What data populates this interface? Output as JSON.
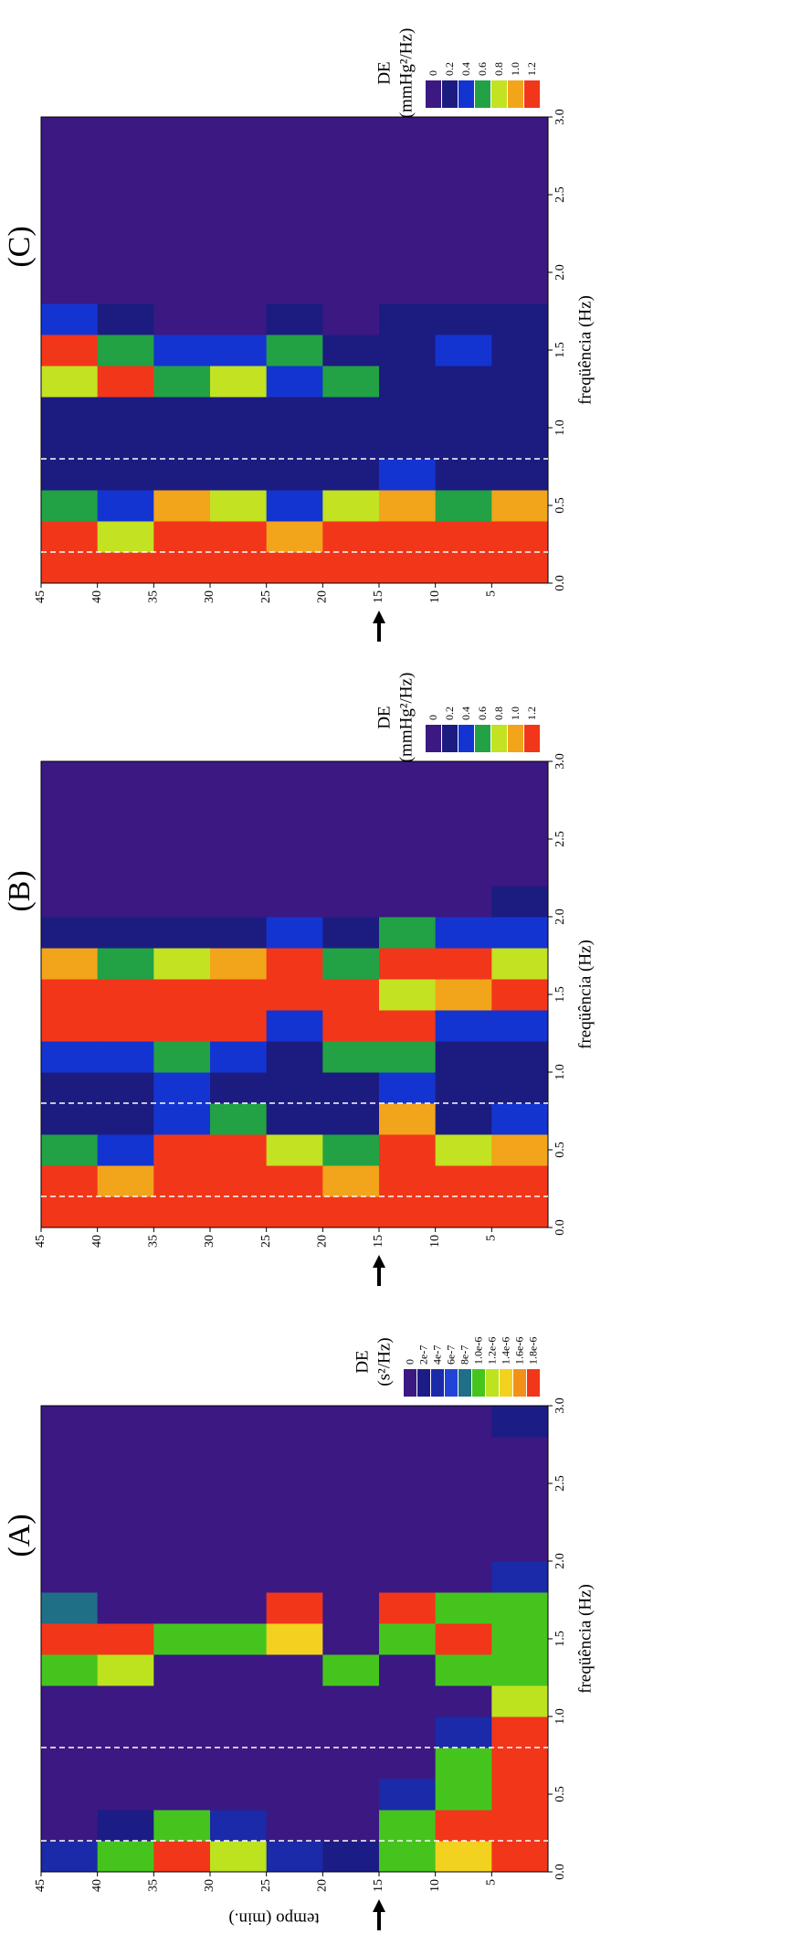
{
  "chart_data": [
    {
      "type": "heatmap",
      "label": "(A)",
      "xlabel": "freqüência (Hz)",
      "ylabel": "tempo (min.)",
      "xlim": [
        0,
        3
      ],
      "xticks": [
        {
          "value": 0,
          "label": "0.0"
        },
        0.5,
        {
          "value": 1,
          "label": "1.0"
        },
        1.5,
        {
          "value": 2,
          "label": "2.0"
        },
        2.5,
        {
          "value": 3,
          "label": "3.0"
        }
      ],
      "ylim": [
        0,
        45
      ],
      "yticks": [
        45,
        40,
        35,
        30,
        25,
        20,
        15,
        10,
        5
      ],
      "xbins": [
        0,
        0.2,
        0.4,
        0.6,
        0.8,
        1,
        1.2,
        1.4,
        1.6,
        1.8,
        2,
        2.2,
        2.4,
        2.6,
        2.8,
        3
      ],
      "ybins": [
        45,
        40,
        35,
        30,
        25,
        20,
        15,
        10,
        5,
        0
      ],
      "dashed_lines": [
        0.2,
        0.8
      ],
      "event_time": 15,
      "colorbar": {
        "title": "DE",
        "unit": "(s²/Hz)",
        "levels": [
          0,
          {
            "value": 2e-07,
            "label": "2e-7"
          },
          {
            "value": 4e-07,
            "label": "4e-7"
          },
          {
            "value": 6e-07,
            "label": "6e-7"
          },
          {
            "value": 8e-07,
            "label": "8e-7"
          },
          {
            "value": 1e-06,
            "label": "1.0e-6"
          },
          {
            "value": 1.2e-06,
            "label": "1.2e-6"
          },
          {
            "value": 1.4e-06,
            "label": "1.4e-6"
          },
          {
            "value": 1.6e-06,
            "label": "1.6e-6"
          },
          {
            "value": 1.8e-06,
            "label": "1.8e-6"
          }
        ],
        "colors": [
          "#3c1882",
          "#1c1c86",
          "#1a2aa8",
          "#2244d6",
          "#1f6f86",
          "#46c41e",
          "#bde21e",
          "#f2d21e",
          "#f2901a",
          "#f2361a"
        ]
      },
      "z": [
        [
          4e-07,
          0,
          0,
          0,
          0,
          0,
          1e-06,
          1.8e-06,
          8e-07,
          0,
          0,
          0,
          0,
          0,
          0
        ],
        [
          1e-06,
          2e-07,
          0,
          0,
          0,
          0,
          1.2e-06,
          1.8e-06,
          0,
          0,
          0,
          0,
          0,
          0,
          0
        ],
        [
          1.8e-06,
          1e-06,
          0,
          0,
          0,
          0,
          0,
          1e-06,
          0,
          0,
          0,
          0,
          0,
          0,
          0
        ],
        [
          1.2e-06,
          4e-07,
          0,
          0,
          0,
          0,
          0,
          1e-06,
          0,
          0,
          0,
          0,
          0,
          0,
          0
        ],
        [
          4e-07,
          0,
          0,
          0,
          0,
          0,
          0,
          1.4e-06,
          1.8e-06,
          0,
          0,
          0,
          0,
          0,
          0
        ],
        [
          2e-07,
          0,
          0,
          0,
          0,
          0,
          1e-06,
          0,
          0,
          0,
          0,
          0,
          0,
          0,
          0
        ],
        [
          1e-06,
          1e-06,
          4e-07,
          0,
          0,
          0,
          0,
          1e-06,
          1.8e-06,
          0,
          0,
          0,
          0,
          0,
          0
        ],
        [
          1.4e-06,
          1.8e-06,
          1e-06,
          1e-06,
          4e-07,
          0,
          1e-06,
          1.8e-06,
          1e-06,
          0,
          0,
          0,
          0,
          0,
          0
        ],
        [
          1.8e-06,
          1.8e-06,
          1.8e-06,
          1.8e-06,
          1.8e-06,
          1.2e-06,
          1e-06,
          1e-06,
          1e-06,
          4e-07,
          0,
          0,
          0,
          0,
          2e-07
        ]
      ]
    },
    {
      "type": "heatmap",
      "label": "(B)",
      "xlabel": "freqüência (Hz)",
      "xlim": [
        0,
        3
      ],
      "xticks": [
        {
          "value": 0,
          "label": "0.0"
        },
        0.5,
        {
          "value": 1,
          "label": "1.0"
        },
        1.5,
        {
          "value": 2,
          "label": "2.0"
        },
        2.5,
        {
          "value": 3,
          "label": "3.0"
        }
      ],
      "ylim": [
        0,
        45
      ],
      "yticks": [
        45,
        40,
        35,
        30,
        25,
        20,
        15,
        10,
        5
      ],
      "xbins": [
        0,
        0.2,
        0.4,
        0.6,
        0.8,
        1,
        1.2,
        1.4,
        1.6,
        1.8,
        2,
        2.2,
        2.4,
        2.6,
        2.8,
        3
      ],
      "ybins": [
        45,
        40,
        35,
        30,
        25,
        20,
        15,
        10,
        5,
        0
      ],
      "dashed_lines": [
        0.2,
        0.8
      ],
      "event_time": 15,
      "colorbar": {
        "title": "DE",
        "unit": "(mmHg²/Hz)",
        "levels": [
          0,
          0.2,
          0.4,
          0.6,
          0.8,
          {
            "value": 1,
            "label": "1.0"
          },
          1.2
        ],
        "colors": [
          "#3c1882",
          "#1c1c80",
          "#1434d2",
          "#22a244",
          "#c2e222",
          "#f2a41a",
          "#f2361a"
        ]
      },
      "z": [
        [
          1.2,
          1.2,
          0.6,
          0.2,
          0.2,
          0.4,
          1.2,
          1.2,
          1,
          0.2,
          0,
          0,
          0,
          0,
          0
        ],
        [
          1.2,
          1,
          0.4,
          0.2,
          0.2,
          0.4,
          1.2,
          1.2,
          0.6,
          0.2,
          0,
          0,
          0,
          0,
          0
        ],
        [
          1.2,
          1.2,
          1.2,
          0.4,
          0.4,
          0.6,
          1.2,
          1.2,
          0.8,
          0.2,
          0,
          0,
          0,
          0,
          0
        ],
        [
          1.2,
          1.2,
          1.2,
          0.6,
          0.2,
          0.4,
          1.2,
          1.2,
          1,
          0.2,
          0,
          0,
          0,
          0,
          0
        ],
        [
          1.2,
          1.2,
          0.8,
          0.2,
          0.2,
          0.2,
          0.4,
          1.2,
          1.2,
          0.4,
          0,
          0,
          0,
          0,
          0
        ],
        [
          1.2,
          1,
          0.6,
          0.2,
          0.2,
          0.6,
          1.2,
          1.2,
          0.6,
          0.2,
          0,
          0,
          0,
          0,
          0
        ],
        [
          1.2,
          1.2,
          1.2,
          1,
          0.4,
          0.6,
          1.2,
          0.8,
          1.2,
          0.6,
          0,
          0,
          0,
          0,
          0
        ],
        [
          1.2,
          1.2,
          0.8,
          0.2,
          0.2,
          0.2,
          0.4,
          1,
          1.2,
          0.4,
          0,
          0,
          0,
          0,
          0
        ],
        [
          1.2,
          1.2,
          1,
          0.4,
          0.2,
          0.2,
          0.4,
          1.2,
          0.8,
          0.4,
          0.2,
          0,
          0,
          0,
          0
        ]
      ]
    },
    {
      "type": "heatmap",
      "label": "(C)",
      "xlabel": "freqüência (Hz)",
      "xlim": [
        0,
        3
      ],
      "xticks": [
        {
          "value": 0,
          "label": "0.0"
        },
        0.5,
        {
          "value": 1,
          "label": "1.0"
        },
        1.5,
        {
          "value": 2,
          "label": "2.0"
        },
        2.5,
        {
          "value": 3,
          "label": "3.0"
        }
      ],
      "ylim": [
        0,
        45
      ],
      "yticks": [
        45,
        40,
        35,
        30,
        25,
        20,
        15,
        10,
        5
      ],
      "xbins": [
        0,
        0.2,
        0.4,
        0.6,
        0.8,
        1,
        1.2,
        1.4,
        1.6,
        1.8,
        2,
        2.2,
        2.4,
        2.6,
        2.8,
        3
      ],
      "ybins": [
        45,
        40,
        35,
        30,
        25,
        20,
        15,
        10,
        5,
        0
      ],
      "dashed_lines": [
        0.2,
        0.8
      ],
      "event_time": 15,
      "colorbar": {
        "title": "DE",
        "unit": "(mmHg²/Hz)",
        "levels": [
          0,
          0.2,
          0.4,
          0.6,
          0.8,
          {
            "value": 1,
            "label": "1.0"
          },
          1.2
        ],
        "colors": [
          "#3c1882",
          "#1c1c80",
          "#1434d2",
          "#22a244",
          "#c2e222",
          "#f2a41a",
          "#f2361a"
        ]
      },
      "z": [
        [
          1.2,
          1.2,
          0.6,
          0.2,
          0.2,
          0.2,
          0.8,
          1.2,
          0.4,
          0,
          0,
          0,
          0,
          0,
          0
        ],
        [
          1.2,
          0.8,
          0.4,
          0.2,
          0.2,
          0.2,
          1.2,
          0.6,
          0.2,
          0,
          0,
          0,
          0,
          0,
          0
        ],
        [
          1.2,
          1.2,
          1,
          0.2,
          0.2,
          0.2,
          0.6,
          0.4,
          0,
          0,
          0,
          0,
          0,
          0,
          0
        ],
        [
          1.2,
          1.2,
          0.8,
          0.2,
          0.2,
          0.2,
          0.8,
          0.4,
          0,
          0,
          0,
          0,
          0,
          0,
          0
        ],
        [
          1.2,
          1,
          0.4,
          0.2,
          0.2,
          0.2,
          0.4,
          0.6,
          0.2,
          0,
          0,
          0,
          0,
          0,
          0
        ],
        [
          1.2,
          1.2,
          0.8,
          0.2,
          0.2,
          0.2,
          0.6,
          0.2,
          0,
          0,
          0,
          0,
          0,
          0,
          0
        ],
        [
          1.2,
          1.2,
          1,
          0.4,
          0.2,
          0.2,
          0.2,
          0.2,
          0.2,
          0,
          0,
          0,
          0,
          0,
          0
        ],
        [
          1.2,
          1.2,
          0.6,
          0.2,
          0.2,
          0.2,
          0.2,
          0.4,
          0.2,
          0,
          0,
          0,
          0,
          0,
          0
        ],
        [
          1.2,
          1.2,
          1,
          0.2,
          0.2,
          0.2,
          0.2,
          0.2,
          0.2,
          0,
          0,
          0,
          0,
          0,
          0
        ]
      ]
    }
  ]
}
